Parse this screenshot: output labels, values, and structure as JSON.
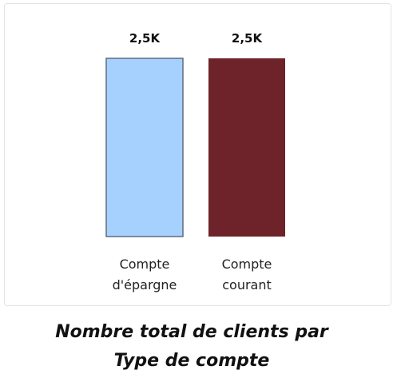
{
  "chart_data": {
    "type": "bar",
    "categories": [
      [
        "Compte",
        "d'épargne"
      ],
      [
        "Compte",
        "courant"
      ]
    ],
    "values": [
      2500,
      2500
    ],
    "data_labels": [
      "2,5K",
      "2,5K"
    ],
    "colors": [
      "#a6d1ff",
      "#6d2329"
    ],
    "title_lines": [
      "Nombre total de clients par",
      "Type de compte"
    ],
    "ylim": [
      0,
      2500
    ],
    "grid": false,
    "legend": "none"
  }
}
